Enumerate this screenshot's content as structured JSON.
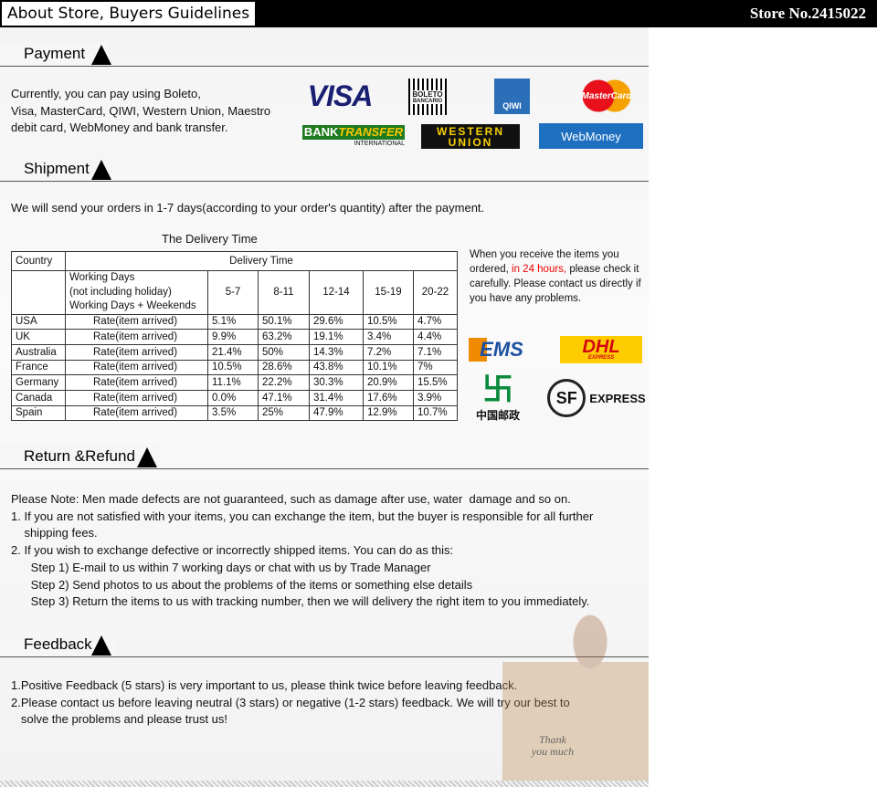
{
  "header": {
    "title": "About Store, Buyers Guidelines",
    "store": "Store No.2415022"
  },
  "payment": {
    "heading": "Payment",
    "text": [
      "Currently, you can pay using Boleto,",
      "Visa, MasterCard, QIWI, Western Union, Maestro",
      "debit card, WebMoney and bank transfer."
    ],
    "logos": {
      "visa": "VISA",
      "boleto": "BOLETO",
      "boleto_sub": "BANCARIO",
      "qiwi": "QIWI",
      "mastercard": "MasterCard",
      "bank": "BANK",
      "transfer": "TRANSFER",
      "international": "INTERNATIONAL",
      "western": "WESTERN",
      "union": "UNION",
      "webmoney": "WebMoney"
    }
  },
  "shipment": {
    "heading": "Shipment",
    "text": "We will send your orders in 1-7 days(according to your order's quantity) after the payment.",
    "table_title": "The Delivery Time",
    "table": {
      "country_header": "Country",
      "delivery_header": "Delivery Time",
      "sub_header": [
        "Working Days",
        "(not including holiday)",
        "Working Days + Weekends"
      ],
      "ranges": [
        "5-7",
        "8-11",
        "12-14",
        "15-19",
        "20-22"
      ],
      "rows": [
        {
          "country": "USA",
          "label": "Rate(item arrived)",
          "values": [
            "5.1%",
            "50.1%",
            "29.6%",
            "10.5%",
            "4.7%"
          ]
        },
        {
          "country": "UK",
          "label": "Rate(item arrived)",
          "values": [
            "9.9%",
            "63.2%",
            "19.1%",
            "3.4%",
            "4.4%"
          ]
        },
        {
          "country": "Australia",
          "label": "Rate(item arrived)",
          "values": [
            "21.4%",
            "50%",
            "14.3%",
            "7.2%",
            "7.1%"
          ]
        },
        {
          "country": "France",
          "label": "Rate(item arrived)",
          "values": [
            "10.5%",
            "28.6%",
            "43.8%",
            "10.1%",
            "7%"
          ]
        },
        {
          "country": "Germany",
          "label": "Rate(item arrived)",
          "values": [
            "11.1%",
            "22.2%",
            "30.3%",
            "20.9%",
            "15.5%"
          ]
        },
        {
          "country": "Canada",
          "label": "Rate(item arrived)",
          "values": [
            "0.0%",
            "47.1%",
            "31.4%",
            "17.6%",
            "3.9%"
          ]
        },
        {
          "country": "Spain",
          "label": "Rate(item arrived)",
          "values": [
            "3.5%",
            "25%",
            "47.9%",
            "12.9%",
            "10.7%"
          ]
        }
      ]
    },
    "note": {
      "a": "When you receive the items you ordered, ",
      "highlight": "in 24 hours,",
      "b": " please check it carefully. Please contact us directly if you have any problems."
    },
    "carriers": {
      "ems": "EMS",
      "dhl": "DHL",
      "dhl_sub": "EXPRESS",
      "post": "中国邮政",
      "sf": "SF",
      "sf_express": "EXPRESS"
    }
  },
  "refund": {
    "heading": "Return &Refund",
    "lines": [
      "Please Note: Men made defects are not guaranteed, such as damage after use, water  damage and so on.",
      "1. If you are not satisfied with your items, you can exchange the item, but the buyer is responsible for all further",
      "    shipping fees.",
      "2. If you wish to exchange defective or incorrectly shipped items. You can do as this:",
      "      Step 1) E-mail to us within 7 working days or chat with us by Trade Manager",
      "      Step 2) Send photos to us about the problems of the items or something else details",
      "      Step 3) Return the items to us with tracking number, then we will delivery the right item to you immediately."
    ]
  },
  "feedback": {
    "heading": "Feedback",
    "lines": [
      "1.Positive Feedback (5 stars) is very important to us, please think twice before leaving feedback.",
      "2.Please contact us before leaving neutral (3 stars) or negative (1-2 stars) feedback. We will try our best to",
      "   solve the problems and please trust us!"
    ],
    "thank_you": "Thank you much"
  },
  "colors": {
    "accent_red": "#e00000",
    "visa_blue": "#1a1f71",
    "qiwi_blue": "#2a6fb8",
    "webmoney_blue": "#1e6fc0",
    "dhl_yellow": "#ffcc00",
    "ems_blue": "#1d4fa0"
  }
}
